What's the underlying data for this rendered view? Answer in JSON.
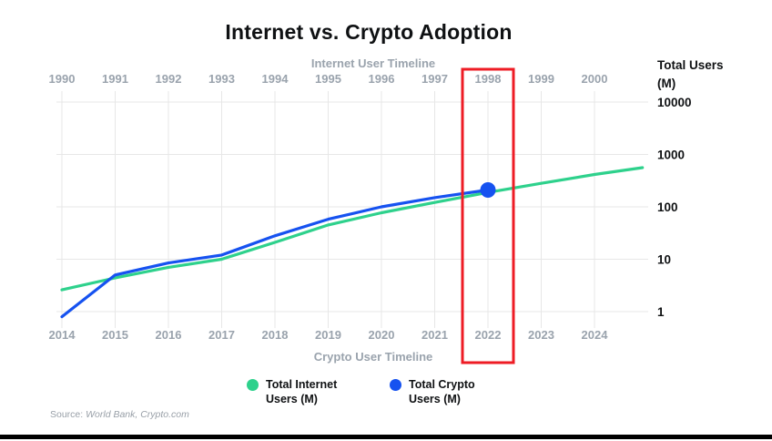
{
  "title": "Internet vs. Crypto Adoption",
  "source": {
    "prefix": "Source: ",
    "text": "World Bank, Crypto.com"
  },
  "chart_data": {
    "type": "line",
    "title": "Internet vs. Crypto Adoption",
    "gridline_color": "#e7e7e7",
    "top_axis": {
      "label": "Internet User Timeline",
      "ticks": [
        1990,
        1991,
        1992,
        1993,
        1994,
        1995,
        1996,
        1997,
        1998,
        1999,
        2000
      ]
    },
    "bottom_axis": {
      "label": "Crypto User Timeline",
      "ticks": [
        2014,
        2015,
        2016,
        2017,
        2018,
        2019,
        2020,
        2021,
        2022,
        2023,
        2024
      ]
    },
    "y_axis": {
      "label": "Total Users (M)",
      "scale": "log",
      "ticks": [
        10000,
        1000,
        100,
        10,
        1
      ],
      "ylim": [
        1,
        10000
      ]
    },
    "series": [
      {
        "key": "internet-users",
        "name": "Total Internet Users (M)",
        "color": "#2ed18c",
        "axis": "top",
        "x": [
          1990,
          1991,
          1992,
          1993,
          1994,
          1995,
          1996,
          1997,
          1998,
          1999,
          2000,
          2000.9
        ],
        "values": [
          2.6,
          4.4,
          7,
          10,
          21,
          45,
          77,
          121,
          188,
          281,
          415,
          560
        ]
      },
      {
        "key": "crypto-users",
        "name": "Total Crypto Users (M)",
        "color": "#1652f0",
        "axis": "bottom",
        "x": [
          2014,
          2015,
          2016,
          2017,
          2018,
          2019,
          2020,
          2021,
          2022
        ],
        "values": [
          0.8,
          5,
          8.5,
          12,
          28,
          58,
          100,
          150,
          210
        ],
        "end_marker": true
      }
    ],
    "highlight_box": {
      "top_year": 1998,
      "bottom_year": 2022,
      "color": "#ee1c25"
    }
  }
}
